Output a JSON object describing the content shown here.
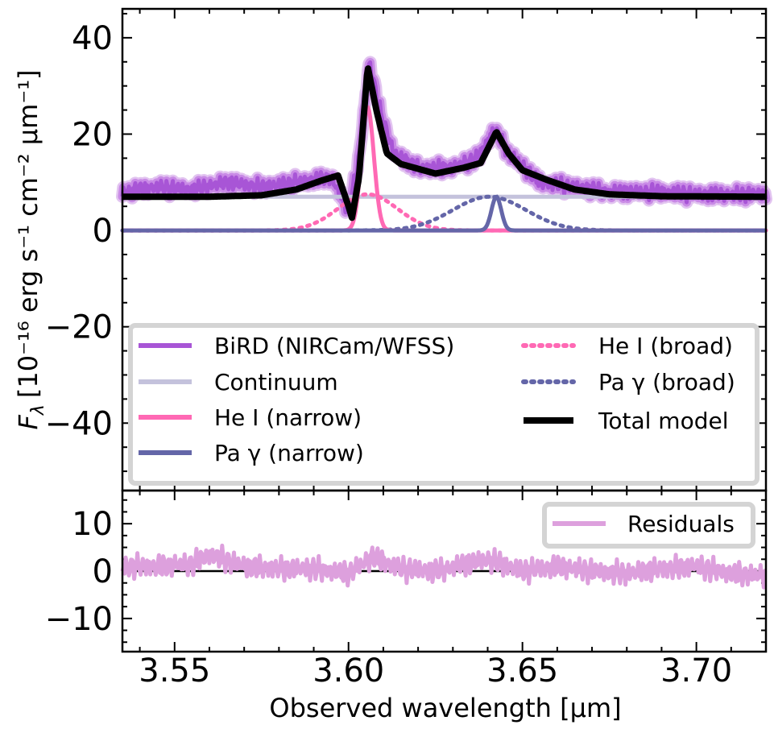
{
  "chart_data": [
    {
      "type": "line",
      "panel": "top",
      "xlabel": "",
      "ylabel_base": "F",
      "ylabel_sub": "λ",
      "ylabel_unit": "[10⁻¹⁶ erg s⁻¹ cm⁻² μm⁻¹]",
      "xlim": [
        3.535,
        3.72
      ],
      "ylim": [
        -54,
        46
      ],
      "yticks": [
        40,
        20,
        0,
        -20,
        -40
      ],
      "ytick_labels": [
        "40",
        "20",
        "0",
        "−20",
        "−40"
      ],
      "xticks": [
        3.55,
        3.6,
        3.65,
        3.7
      ],
      "continuum_level": 7.0,
      "series": [
        {
          "name": "BiRD (NIRCam/WFSS)",
          "color": "#a855d6",
          "style": "solid",
          "data": [
            [
              3.535,
              8
            ],
            [
              3.545,
              9
            ],
            [
              3.555,
              8.5
            ],
            [
              3.565,
              10
            ],
            [
              3.575,
              9
            ],
            [
              3.585,
              10
            ],
            [
              3.595,
              11
            ],
            [
              3.6,
              4
            ],
            [
              3.603,
              15
            ],
            [
              3.606,
              35
            ],
            [
              3.609,
              25
            ],
            [
              3.613,
              16
            ],
            [
              3.62,
              13
            ],
            [
              3.63,
              13
            ],
            [
              3.637,
              15
            ],
            [
              3.642,
              21
            ],
            [
              3.646,
              16
            ],
            [
              3.655,
              10
            ],
            [
              3.665,
              9
            ],
            [
              3.675,
              8
            ],
            [
              3.69,
              8
            ],
            [
              3.7,
              7.5
            ],
            [
              3.72,
              7.5
            ]
          ]
        },
        {
          "name": "Continuum",
          "color": "#c4c2dc",
          "style": "solid",
          "data": [
            [
              3.535,
              7
            ],
            [
              3.72,
              7
            ]
          ]
        },
        {
          "name": "He I (narrow)",
          "color": "#ff69b4",
          "style": "solid",
          "center": 3.6055,
          "amplitude": 25.5,
          "sigma": 0.0018
        },
        {
          "name": "Pa γ (narrow)",
          "color": "#6466a8",
          "style": "solid",
          "center": 3.6425,
          "amplitude": 7.0,
          "sigma": 0.0014
        },
        {
          "name": "He I (broad)",
          "color": "#ff69b4",
          "style": "dotted",
          "center": 3.6055,
          "amplitude": 7.5,
          "sigma": 0.0085
        },
        {
          "name": "Pa γ (broad)",
          "color": "#6466a8",
          "style": "dotted",
          "center": 3.6405,
          "amplitude": 7.0,
          "sigma": 0.0105
        },
        {
          "name": "Total model",
          "color": "#000000",
          "style": "solid",
          "data": [
            [
              3.535,
              7
            ],
            [
              3.56,
              7
            ],
            [
              3.575,
              7.3
            ],
            [
              3.585,
              8.5
            ],
            [
              3.592,
              10.3
            ],
            [
              3.597,
              11.4
            ],
            [
              3.6,
              5
            ],
            [
              3.601,
              2.6
            ],
            [
              3.603,
              11
            ],
            [
              3.6055,
              34
            ],
            [
              3.608,
              25
            ],
            [
              3.611,
              16
            ],
            [
              3.615,
              13.8
            ],
            [
              3.625,
              11.8
            ],
            [
              3.633,
              13
            ],
            [
              3.638,
              14
            ],
            [
              3.6425,
              20.5
            ],
            [
              3.646,
              16
            ],
            [
              3.65,
              12.5
            ],
            [
              3.657,
              10.5
            ],
            [
              3.665,
              8.5
            ],
            [
              3.675,
              7.5
            ],
            [
              3.69,
              7.1
            ],
            [
              3.72,
              7
            ]
          ]
        }
      ],
      "legend": {
        "placement": "lower-center",
        "entries_left": [
          "BiRD (NIRCam/WFSS)",
          "Continuum",
          "He I (narrow)",
          "Pa γ (narrow)"
        ],
        "entries_right": [
          "He I (broad)",
          "Pa γ (broad)",
          "Total model"
        ]
      }
    },
    {
      "type": "line",
      "panel": "bottom",
      "xlabel": "Observed wavelength [μm]",
      "ylabel": "",
      "xlim": [
        3.535,
        3.72
      ],
      "ylim": [
        -17,
        17
      ],
      "yticks": [
        10,
        0,
        -10
      ],
      "ytick_labels": [
        "10",
        "0",
        "−10"
      ],
      "xticks": [
        3.55,
        3.6,
        3.65,
        3.7
      ],
      "xtick_labels": [
        "3.55",
        "3.60",
        "3.65",
        "3.70"
      ],
      "series": [
        {
          "name": "Residuals",
          "color": "#dda0dd",
          "style": "solid",
          "data": [
            [
              3.535,
              1
            ],
            [
              3.545,
              1
            ],
            [
              3.555,
              1.5
            ],
            [
              3.56,
              3.5
            ],
            [
              3.57,
              1
            ],
            [
              3.58,
              0.5
            ],
            [
              3.59,
              0.5
            ],
            [
              3.6,
              -0.5
            ],
            [
              3.607,
              3
            ],
            [
              3.615,
              0.5
            ],
            [
              3.625,
              0
            ],
            [
              3.64,
              2.5
            ],
            [
              3.65,
              0
            ],
            [
              3.66,
              1
            ],
            [
              3.67,
              0
            ],
            [
              3.68,
              -0.5
            ],
            [
              3.69,
              0.5
            ],
            [
              3.7,
              1
            ],
            [
              3.71,
              -0.5
            ],
            [
              3.72,
              -1
            ]
          ]
        }
      ],
      "legend": {
        "placement": "top-right",
        "entries": [
          "Residuals"
        ]
      }
    }
  ]
}
